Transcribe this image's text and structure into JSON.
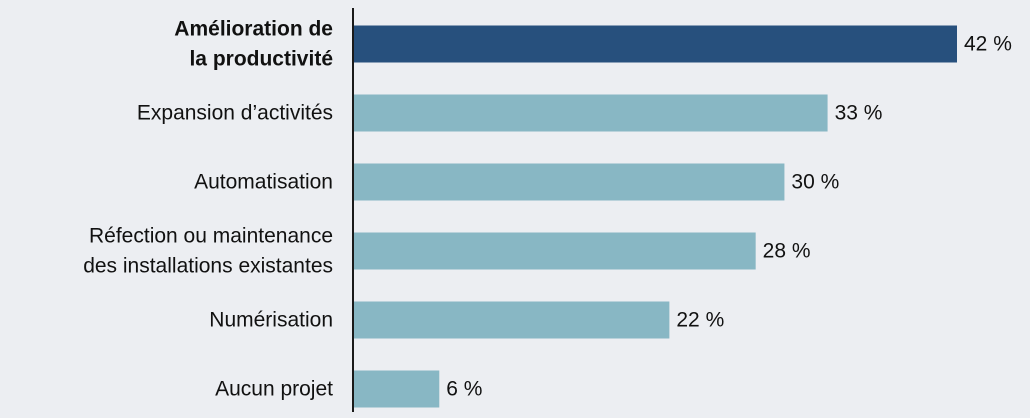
{
  "chart_data": {
    "type": "bar",
    "orientation": "horizontal",
    "categories": [
      [
        "Amélioration de",
        "la productivité"
      ],
      [
        "Expansion d’activités"
      ],
      [
        "Automatisation"
      ],
      [
        "Réfection ou maintenance",
        "des installations existantes"
      ],
      [
        "Numérisation"
      ],
      [
        "Aucun projet"
      ]
    ],
    "values": [
      42,
      33,
      30,
      28,
      22,
      6
    ],
    "value_labels": [
      "42 %",
      "33 %",
      "30 %",
      "28 %",
      "22 %",
      "6 %"
    ],
    "highlight_index": 0,
    "xlim": [
      0,
      42
    ],
    "grid": false,
    "legend": "none",
    "colors": {
      "highlight": "#27507d",
      "bar": "#88b7c4",
      "axis": "#1a1a1a",
      "text": "#111111",
      "background": "#eceef2"
    }
  }
}
